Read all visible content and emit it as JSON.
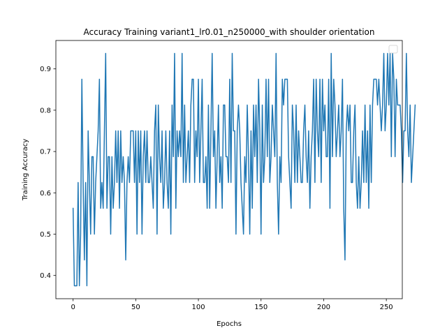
{
  "chart_data": {
    "type": "line",
    "title": "Accuracy Training variant1_lr0.01_n250000_with shoulder orientation",
    "xlabel": "Epochs",
    "ylabel": "Training Accuracy",
    "xlim": [
      -13.75,
      262.75
    ],
    "ylim": [
      0.34375,
      0.96875
    ],
    "xticks": [
      0,
      50,
      100,
      150,
      200,
      250
    ],
    "yticks": [
      0.4,
      0.5,
      0.6,
      0.7,
      0.8,
      0.9
    ],
    "grid": false,
    "legend": "top-right, empty",
    "series": [
      {
        "color": "#1f77b4",
        "x_start": 0,
        "x_step": 1,
        "values": [
          0.5625,
          0.375,
          0.375,
          0.375,
          0.625,
          0.375,
          0.5,
          0.875,
          0.625,
          0.4375,
          0.625,
          0.375,
          0.75,
          0.625,
          0.5,
          0.6875,
          0.6875,
          0.5,
          0.625,
          0.6875,
          0.75,
          0.875,
          0.5625,
          0.625,
          0.5625,
          0.75,
          0.9375,
          0.5625,
          0.6875,
          0.6875,
          0.5,
          0.6875,
          0.5625,
          0.625,
          0.75,
          0.625,
          0.75,
          0.5625,
          0.75,
          0.625,
          0.6875,
          0.625,
          0.4375,
          0.625,
          0.6875,
          0.625,
          0.75,
          0.75,
          0.75,
          0.625,
          0.75,
          0.5,
          0.75,
          0.625,
          0.75,
          0.5,
          0.6875,
          0.75,
          0.625,
          0.75,
          0.625,
          0.625,
          0.6875,
          0.625,
          0.5625,
          0.75,
          0.8125,
          0.5,
          0.8125,
          0.6875,
          0.625,
          0.75,
          0.5625,
          0.625,
          0.75,
          0.625,
          0.5625,
          0.75,
          0.5,
          0.8125,
          0.6875,
          0.9375,
          0.5625,
          0.75,
          0.6875,
          0.75,
          0.6875,
          0.9375,
          0.625,
          0.8125,
          0.625,
          0.6875,
          0.75,
          0.625,
          0.8125,
          0.875,
          0.875,
          0.625,
          0.75,
          0.6875,
          0.875,
          0.625,
          0.75,
          0.875,
          0.625,
          0.625,
          0.6875,
          0.5625,
          0.8125,
          0.5625,
          0.75,
          0.9375,
          0.6875,
          0.75,
          0.5625,
          0.6875,
          0.8125,
          0.625,
          0.6875,
          0.5625,
          0.8125,
          0.8125,
          0.6875,
          0.6875,
          0.625,
          0.875,
          0.625,
          0.9375,
          0.75,
          0.75,
          0.5,
          0.75,
          0.8125,
          0.75,
          0.625,
          0.5625,
          0.5,
          0.6875,
          0.625,
          0.8125,
          0.6875,
          0.5,
          0.75,
          0.5625,
          0.8125,
          0.6875,
          0.8125,
          0.625,
          0.875,
          0.75,
          0.5,
          0.8125,
          0.625,
          0.6875,
          0.875,
          0.6875,
          0.875,
          0.625,
          0.6875,
          0.8125,
          0.75,
          0.6875,
          0.9375,
          0.625,
          0.5,
          0.6875,
          0.625,
          0.875,
          0.8125,
          0.875,
          0.875,
          0.875,
          0.6875,
          0.625,
          0.5625,
          0.8125,
          0.75,
          0.625,
          0.8125,
          0.625,
          0.75,
          0.6875,
          0.625,
          0.625,
          0.75,
          0.8125,
          0.6875,
          0.625,
          0.75,
          0.5625,
          0.6875,
          0.75,
          0.875,
          0.625,
          0.875,
          0.75,
          0.6875,
          0.875,
          0.625,
          0.875,
          0.75,
          0.8125,
          0.6875,
          0.6875,
          0.875,
          0.5625,
          0.9375,
          0.6875,
          0.875,
          0.8125,
          0.6875,
          0.75,
          0.8125,
          0.6875,
          0.75,
          0.875,
          0.5625,
          0.4375,
          0.75,
          0.8125,
          0.75,
          0.8125,
          0.625,
          0.625,
          0.75,
          0.8125,
          0.625,
          0.5625,
          0.6875,
          0.5625,
          0.625,
          0.75,
          0.625,
          0.8125,
          0.625,
          0.75,
          0.5625,
          0.8125,
          0.625,
          0.8125,
          0.875,
          0.875,
          0.875,
          0.8125,
          0.875,
          0.8125,
          0.75,
          0.8125,
          0.9375,
          0.75,
          0.8125,
          0.9375,
          0.8125,
          0.9375,
          0.6875,
          0.9375,
          0.875,
          0.6875,
          0.875,
          0.8125,
          0.8125,
          0.8125,
          0.75,
          0.625,
          0.75,
          0.75,
          0.9375,
          0.75,
          0.6875,
          0.8125,
          0.625,
          0.6875,
          0.75,
          0.8125
        ]
      }
    ]
  }
}
